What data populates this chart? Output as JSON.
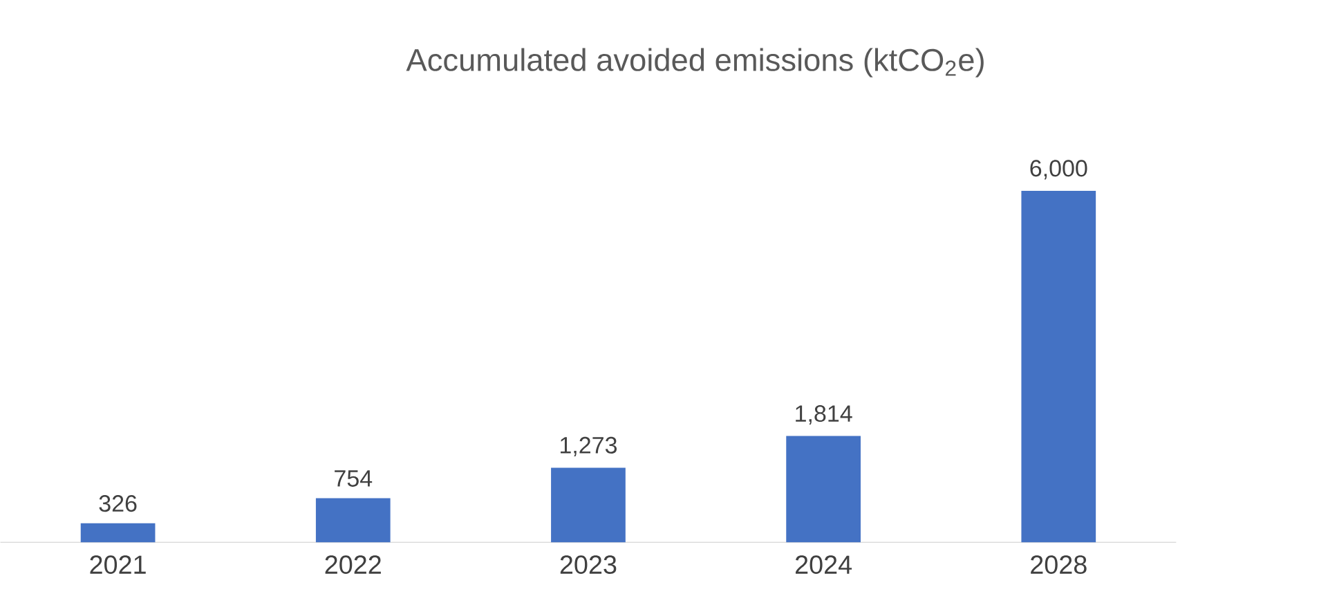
{
  "chart_data": {
    "type": "bar",
    "title": "Accumulated avoided emissions (ktCO$_{2}$e)",
    "categories": [
      "2021",
      "2022",
      "2023",
      "2024",
      "2028"
    ],
    "values": [
      326,
      754,
      1273,
      1814,
      6000
    ],
    "value_labels": [
      "326",
      "754",
      "1,273",
      "1,814",
      "6,000"
    ],
    "color": "#4472c4"
  }
}
